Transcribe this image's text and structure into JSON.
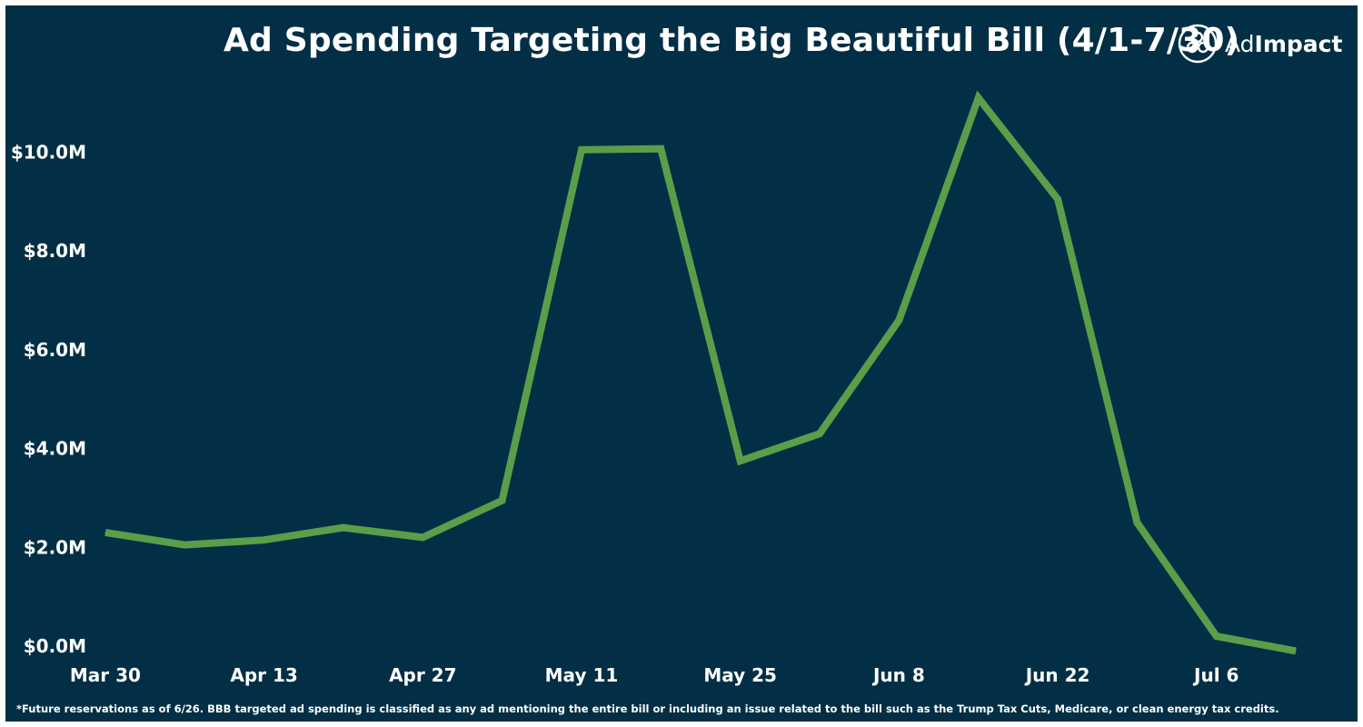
{
  "chart_data": {
    "type": "line",
    "title": "Ad Spending Targeting the Big Beautiful Bill (4/1-7/30)",
    "x_tick_labels": [
      "Mar 30",
      "Apr 13",
      "Apr 27",
      "May 11",
      "May 25",
      "Jun 8",
      "Jun 22",
      "Jul 6"
    ],
    "y_tick_labels": [
      "$0.0M",
      "$2.0M",
      "$4.0M",
      "$6.0M",
      "$8.0M",
      "$10.0M"
    ],
    "y_ticks": [
      0,
      2,
      4,
      6,
      8,
      10
    ],
    "ylim": [
      0,
      11.5
    ],
    "xlim_dates": [
      "2025-03-26",
      "2025-07-17"
    ],
    "grid": false,
    "series": [
      {
        "color": "#5a9e4a",
        "points": [
          {
            "x": "2025-03-30",
            "y": 2.3
          },
          {
            "x": "2025-04-06",
            "y": 2.05
          },
          {
            "x": "2025-04-13",
            "y": 2.15
          },
          {
            "x": "2025-04-20",
            "y": 2.4
          },
          {
            "x": "2025-04-27",
            "y": 2.2
          },
          {
            "x": "2025-05-04",
            "y": 2.95
          },
          {
            "x": "2025-05-11",
            "y": 10.05
          },
          {
            "x": "2025-05-18",
            "y": 10.07
          },
          {
            "x": "2025-05-25",
            "y": 3.75
          },
          {
            "x": "2025-06-01",
            "y": 4.3
          },
          {
            "x": "2025-06-08",
            "y": 6.6
          },
          {
            "x": "2025-06-15",
            "y": 11.1
          },
          {
            "x": "2025-06-22",
            "y": 9.05
          },
          {
            "x": "2025-06-29",
            "y": 2.5
          },
          {
            "x": "2025-07-06",
            "y": 0.2
          },
          {
            "x": "2025-07-13",
            "y": -0.1
          }
        ]
      }
    ]
  },
  "logo": {
    "icon": "adimpact-logo-icon",
    "text_ad": "Ad",
    "text_impact": "Impact"
  },
  "footnote": "*Future reservations as of 6/26. BBB targeted ad spending is classified as any ad mentioning the entire bill or including an issue related to the bill such as the Trump Tax Cuts, Medicare, or clean energy tax credits."
}
